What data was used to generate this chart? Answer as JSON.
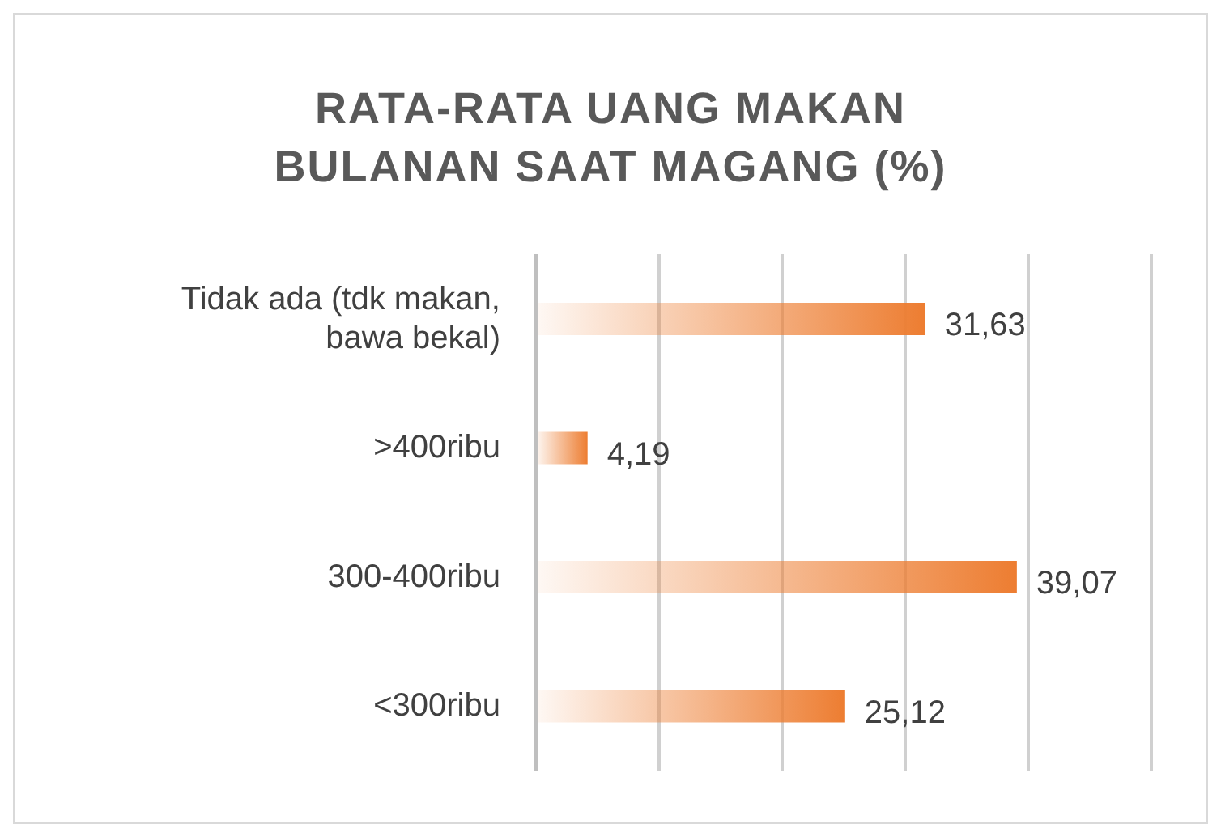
{
  "chart_data": {
    "type": "bar",
    "orientation": "horizontal",
    "title": "RATA-RATA UANG MAKAN BULANAN SAAT MAGANG (%)",
    "categories": [
      "Tidak ada (tdk makan, bawa bekal)",
      ">400ribu",
      "300-400ribu",
      "<300ribu"
    ],
    "values": [
      31.63,
      4.19,
      39.07,
      25.12
    ],
    "value_labels": [
      "31,63",
      "4,19",
      "39,07",
      "25,12"
    ],
    "color": "#ed7d31",
    "xlim": [
      0,
      50
    ],
    "xticks": [
      {
        "value": 0,
        "label": null
      },
      {
        "value": 10,
        "label": null
      },
      {
        "value": 20,
        "label": null
      },
      {
        "value": 30,
        "label": null
      },
      {
        "value": 40,
        "label": null
      },
      {
        "value": 50,
        "label": null
      }
    ],
    "tick_labels": "y",
    "grid": "x"
  }
}
